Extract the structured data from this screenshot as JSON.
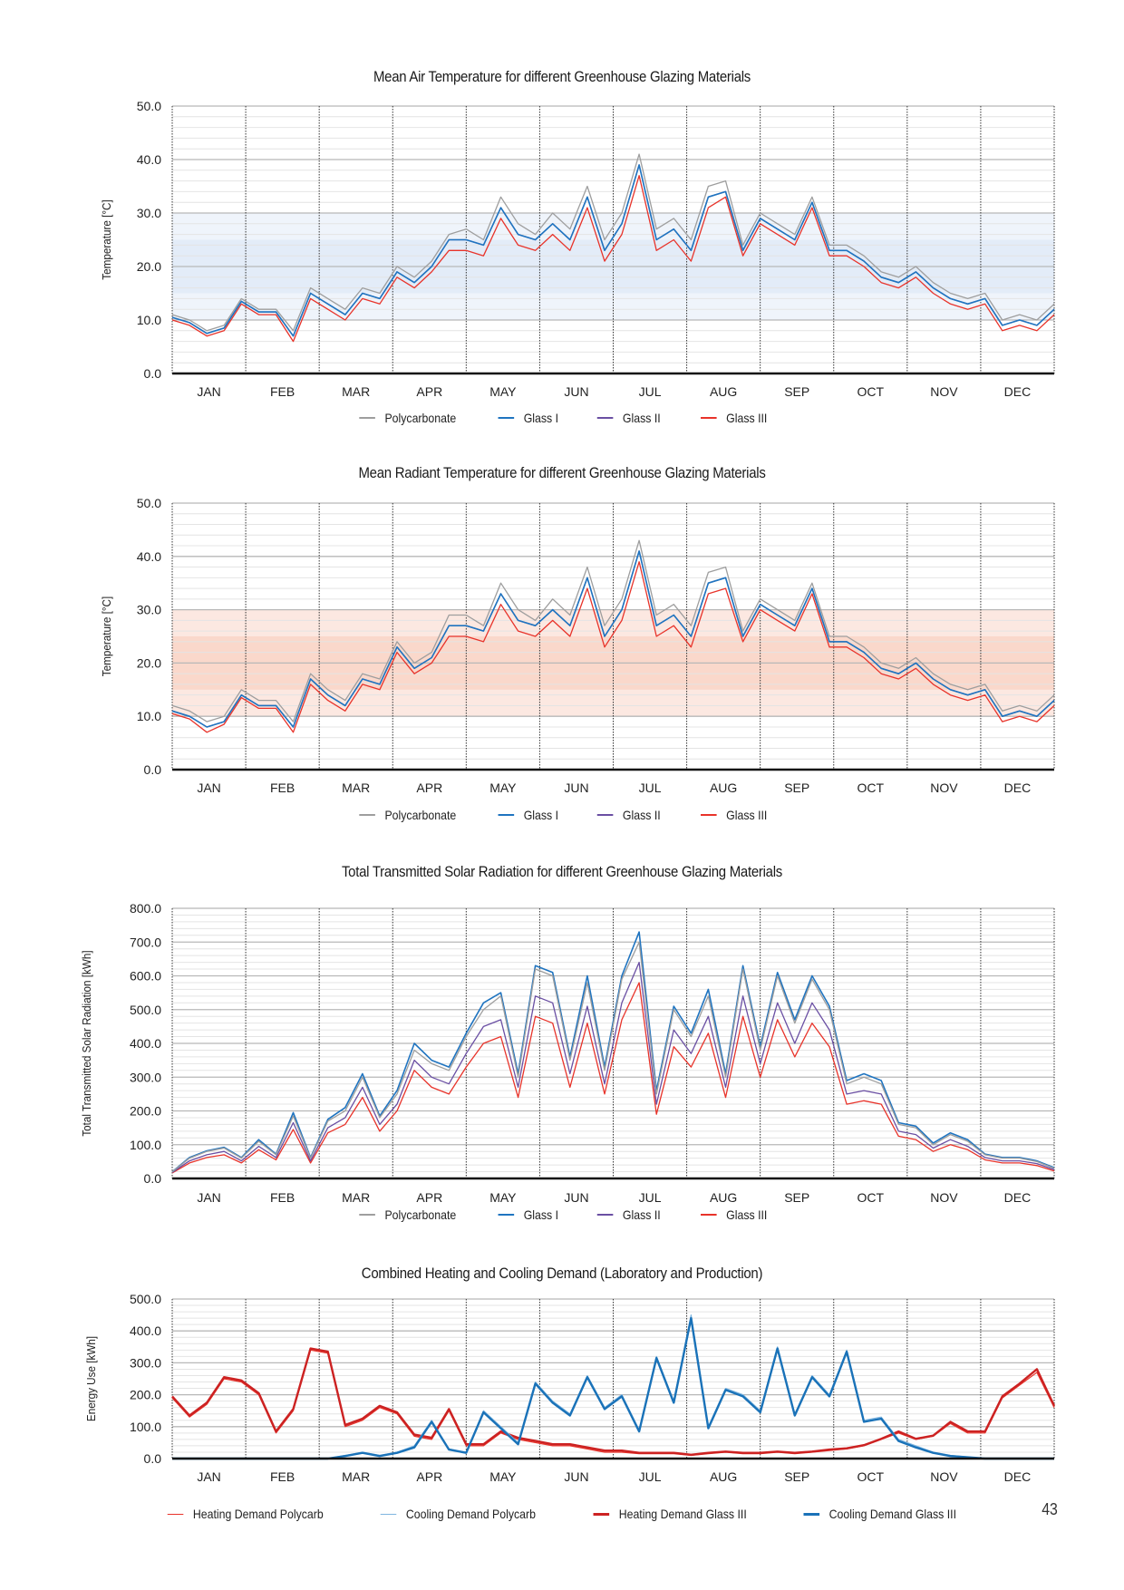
{
  "page": {
    "number": "43"
  },
  "months": [
    "JAN",
    "FEB",
    "MAR",
    "APR",
    "MAY",
    "JUN",
    "JUL",
    "AUG",
    "SEP",
    "OCT",
    "NOV",
    "DEC"
  ],
  "colors": {
    "Polycarbonate": "#9e9e9e",
    "Glass I": "#1f74c0",
    "Glass II": "#6a4fa3",
    "Glass III": "#e8332a",
    "Heating Demand Polycarb": "#e8332a",
    "Cooling Demand Polycarb": "#7fb6e0",
    "Heating Demand Glass III": "#cc2222",
    "Cooling Demand Glass III": "#1a72b8",
    "air_band": "#dbe6f7",
    "radiant_band": "#f8cdbd"
  },
  "chart_data": [
    {
      "type": "line",
      "title": "Mean Air Temperature for different Greenhouse Glazing Materials",
      "xlabel": "",
      "ylabel": "Temperature [°C]",
      "ylim": [
        0,
        50
      ],
      "yticks": [
        "0.0",
        "10.0",
        "20.0",
        "30.0",
        "40.0",
        "50.0"
      ],
      "x_resolution": "weekly (52 points)",
      "grid": true,
      "comfort_band": {
        "outer": [
          10,
          30
        ],
        "inner": [
          15,
          25
        ]
      },
      "legend": [
        "Polycarbonate",
        "Glass I",
        "Glass II",
        "Glass III"
      ],
      "legend_position": "bottom",
      "series": [
        {
          "name": "Polycarbonate",
          "values": [
            11,
            10,
            8,
            9,
            14,
            12,
            12,
            8,
            16,
            14,
            12,
            16,
            15,
            20,
            18,
            21,
            26,
            27,
            25,
            33,
            28,
            26,
            30,
            27,
            35,
            25,
            30,
            41,
            27,
            29,
            25,
            35,
            36,
            24,
            30,
            28,
            26,
            33,
            24,
            24,
            22,
            19,
            18,
            20,
            17,
            15,
            14,
            15,
            10,
            11,
            10,
            13
          ]
        },
        {
          "name": "Glass I",
          "values": [
            10.5,
            9.5,
            7.5,
            8.5,
            13.5,
            11.5,
            11.5,
            7,
            15,
            13,
            11,
            15,
            14,
            19,
            17,
            20,
            25,
            25,
            24,
            31,
            26,
            25,
            28,
            25,
            33,
            23,
            28,
            39,
            25,
            27,
            23,
            33,
            34,
            23,
            29,
            27,
            25,
            32,
            23,
            23,
            21,
            18,
            17,
            19,
            16,
            14,
            13,
            14,
            9,
            10,
            9,
            12
          ]
        },
        {
          "name": "Glass II",
          "values": [
            10.5,
            9.5,
            7.5,
            8.5,
            13.5,
            11.5,
            11.5,
            7,
            15,
            13,
            11,
            15,
            14,
            19,
            17,
            20,
            25,
            25,
            24,
            31,
            26,
            25,
            28,
            25,
            33,
            23,
            28,
            39,
            25,
            27,
            23,
            33,
            34,
            23,
            29,
            27,
            25,
            32,
            23,
            23,
            21,
            18,
            17,
            19,
            16,
            14,
            13,
            14,
            9,
            10,
            9,
            12
          ]
        },
        {
          "name": "Glass III",
          "values": [
            10,
            9,
            7,
            8,
            13,
            11,
            11,
            6,
            14,
            12,
            10,
            14,
            13,
            18,
            16,
            19,
            23,
            23,
            22,
            29,
            24,
            23,
            26,
            23,
            31,
            21,
            26,
            37,
            23,
            25,
            21,
            31,
            33,
            22,
            28,
            26,
            24,
            31,
            22,
            22,
            20,
            17,
            16,
            18,
            15,
            13,
            12,
            13,
            8,
            9,
            8,
            11
          ]
        }
      ]
    },
    {
      "type": "line",
      "title": "Mean Radiant Temperature for different Greenhouse Glazing Materials",
      "xlabel": "",
      "ylabel": "Temperature [°C]",
      "ylim": [
        0,
        50
      ],
      "yticks": [
        "0.0",
        "10.0",
        "20.0",
        "30.0",
        "40.0",
        "50.0"
      ],
      "x_resolution": "weekly (52 points)",
      "grid": true,
      "comfort_band": {
        "outer": [
          10,
          30
        ],
        "inner": [
          15,
          25
        ]
      },
      "legend": [
        "Polycarbonate",
        "Glass I",
        "Glass II",
        "Glass III"
      ],
      "legend_position": "bottom",
      "series": [
        {
          "name": "Polycarbonate",
          "values": [
            12,
            11,
            9,
            10,
            15,
            13,
            13,
            9,
            18,
            15,
            13,
            18,
            17,
            24,
            20,
            22,
            29,
            29,
            27,
            35,
            30,
            28,
            32,
            29,
            38,
            27,
            32,
            43,
            29,
            31,
            27,
            37,
            38,
            26,
            32,
            30,
            28,
            35,
            25,
            25,
            23,
            20,
            19,
            21,
            18,
            16,
            15,
            16,
            11,
            12,
            11,
            14
          ]
        },
        {
          "name": "Glass I",
          "values": [
            11,
            10,
            8,
            9,
            14,
            12,
            12,
            8,
            17,
            14,
            12,
            17,
            16,
            23,
            19,
            21,
            27,
            27,
            26,
            33,
            28,
            27,
            30,
            27,
            36,
            25,
            30,
            41,
            27,
            29,
            25,
            35,
            36,
            25,
            31,
            29,
            27,
            34,
            24,
            24,
            22,
            19,
            18,
            20,
            17,
            15,
            14,
            15,
            10,
            11,
            10,
            13
          ]
        },
        {
          "name": "Glass II",
          "values": [
            11,
            10,
            8,
            9,
            14,
            12,
            12,
            8,
            17,
            14,
            12,
            17,
            16,
            23,
            19,
            21,
            27,
            27,
            26,
            33,
            28,
            27,
            30,
            27,
            36,
            25,
            30,
            41,
            27,
            29,
            25,
            35,
            36,
            25,
            31,
            29,
            27,
            34,
            24,
            24,
            22,
            19,
            18,
            20,
            17,
            15,
            14,
            15,
            10,
            11,
            10,
            13
          ]
        },
        {
          "name": "Glass III",
          "values": [
            10.5,
            9.5,
            7,
            8.5,
            13.5,
            11.5,
            11.5,
            7,
            16,
            13,
            11,
            16,
            15,
            22,
            18,
            20,
            25,
            25,
            24,
            31,
            26,
            25,
            28,
            25,
            34,
            23,
            28,
            39,
            25,
            27,
            23,
            33,
            34,
            24,
            30,
            28,
            26,
            33,
            23,
            23,
            21,
            18,
            17,
            19,
            16,
            14,
            13,
            14,
            9,
            10,
            9,
            12
          ]
        }
      ]
    },
    {
      "type": "line",
      "title": "Total Transmitted Solar Radiation for different Greenhouse Glazing Materials",
      "xlabel": "",
      "ylabel": "Total Transmitted Solar Radiation [kWh]",
      "ylim": [
        0,
        800
      ],
      "yticks": [
        "0.0",
        "100.0",
        "200.0",
        "300.0",
        "400.0",
        "500.0",
        "600.0",
        "700.0",
        "800.0"
      ],
      "x_resolution": "weekly (52 points)",
      "grid": true,
      "legend": [
        "Polycarbonate",
        "Glass I",
        "Glass II",
        "Glass III"
      ],
      "legend_position": "bottom",
      "series": [
        {
          "name": "Polycarbonate",
          "values": [
            20,
            60,
            80,
            90,
            60,
            110,
            70,
            185,
            60,
            170,
            200,
            300,
            180,
            250,
            380,
            340,
            320,
            420,
            500,
            540,
            300,
            620,
            600,
            350,
            580,
            320,
            590,
            700,
            250,
            500,
            420,
            540,
            300,
            620,
            380,
            600,
            460,
            590,
            500,
            280,
            300,
            280,
            160,
            150,
            100,
            130,
            110,
            70,
            60,
            60,
            50,
            30
          ]
        },
        {
          "name": "Glass I",
          "values": [
            20,
            62,
            82,
            92,
            62,
            115,
            72,
            195,
            62,
            175,
            210,
            310,
            185,
            260,
            400,
            350,
            330,
            430,
            520,
            550,
            310,
            630,
            610,
            360,
            600,
            330,
            600,
            730,
            260,
            510,
            430,
            560,
            310,
            630,
            390,
            610,
            470,
            600,
            510,
            290,
            310,
            290,
            165,
            155,
            105,
            135,
            115,
            72,
            62,
            62,
            52,
            32
          ]
        },
        {
          "name": "Glass II",
          "values": [
            18,
            52,
            70,
            80,
            52,
            95,
            62,
            165,
            52,
            150,
            180,
            270,
            160,
            220,
            350,
            300,
            280,
            370,
            450,
            470,
            270,
            540,
            520,
            310,
            510,
            280,
            520,
            640,
            220,
            440,
            370,
            480,
            270,
            540,
            340,
            520,
            400,
            520,
            440,
            250,
            260,
            250,
            140,
            130,
            90,
            115,
            95,
            62,
            52,
            52,
            44,
            26
          ]
        },
        {
          "name": "Glass III",
          "values": [
            16,
            46,
            62,
            70,
            46,
            85,
            55,
            145,
            46,
            135,
            160,
            240,
            140,
            200,
            320,
            270,
            250,
            330,
            400,
            420,
            240,
            480,
            460,
            270,
            460,
            250,
            470,
            580,
            190,
            390,
            330,
            430,
            240,
            480,
            300,
            470,
            360,
            460,
            390,
            220,
            230,
            220,
            125,
            115,
            80,
            100,
            85,
            55,
            46,
            46,
            38,
            22
          ]
        }
      ]
    },
    {
      "type": "line",
      "title": "Combined Heating and Cooling Demand (Laboratory and Production)",
      "xlabel": "",
      "ylabel": "Energy Use [kWh]",
      "ylim": [
        0,
        500
      ],
      "yticks": [
        "0.0",
        "100.0",
        "200.0",
        "300.0",
        "400.0",
        "500.0"
      ],
      "x_resolution": "weekly (52 points)",
      "grid": true,
      "legend": [
        "Heating Demand Polycarb",
        "Cooling Demand Polycarb",
        "Heating Demand Glass III",
        "Cooling Demand Glass III"
      ],
      "legend_position": "bottom",
      "series": [
        {
          "name": "Heating Demand Polycarb",
          "values": [
            190,
            130,
            170,
            250,
            240,
            200,
            80,
            150,
            340,
            330,
            100,
            120,
            160,
            140,
            70,
            60,
            150,
            40,
            40,
            80,
            60,
            50,
            40,
            40,
            30,
            20,
            20,
            15,
            15,
            15,
            10,
            15,
            20,
            15,
            15,
            20,
            15,
            20,
            25,
            30,
            40,
            60,
            80,
            60,
            70,
            110,
            80,
            80,
            190,
            230,
            270,
            160
          ]
        },
        {
          "name": "Cooling Demand Polycarb",
          "values": [
            0,
            0,
            0,
            0,
            0,
            0,
            0,
            0,
            0,
            0,
            10,
            20,
            10,
            20,
            40,
            120,
            30,
            20,
            150,
            100,
            50,
            240,
            180,
            140,
            260,
            160,
            200,
            90,
            320,
            180,
            450,
            100,
            220,
            200,
            150,
            350,
            140,
            260,
            200,
            340,
            120,
            130,
            60,
            40,
            20,
            10,
            5,
            0,
            0,
            0,
            0,
            0
          ]
        },
        {
          "name": "Heating Demand Glass III",
          "values": [
            195,
            135,
            175,
            255,
            245,
            205,
            85,
            155,
            345,
            335,
            105,
            125,
            165,
            145,
            75,
            65,
            155,
            45,
            45,
            85,
            65,
            55,
            45,
            45,
            35,
            25,
            25,
            18,
            18,
            18,
            12,
            18,
            22,
            18,
            18,
            22,
            18,
            22,
            28,
            32,
            42,
            62,
            85,
            62,
            72,
            115,
            85,
            85,
            195,
            235,
            280,
            165
          ]
        },
        {
          "name": "Cooling Demand Glass III",
          "values": [
            0,
            0,
            0,
            0,
            0,
            0,
            0,
            0,
            0,
            0,
            8,
            18,
            8,
            18,
            35,
            115,
            28,
            18,
            145,
            95,
            45,
            235,
            175,
            135,
            255,
            155,
            195,
            85,
            315,
            175,
            440,
            95,
            215,
            195,
            145,
            345,
            135,
            255,
            195,
            335,
            115,
            125,
            55,
            35,
            18,
            8,
            4,
            0,
            0,
            0,
            0,
            0
          ]
        }
      ]
    }
  ]
}
